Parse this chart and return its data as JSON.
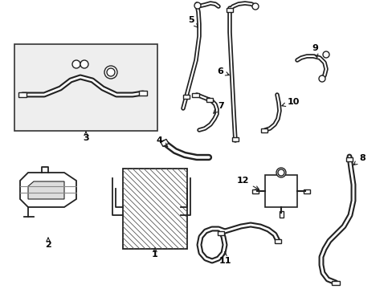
{
  "bg_color": "#ffffff",
  "line_color": "#222222",
  "fig_width": 4.89,
  "fig_height": 3.6,
  "dpi": 100
}
